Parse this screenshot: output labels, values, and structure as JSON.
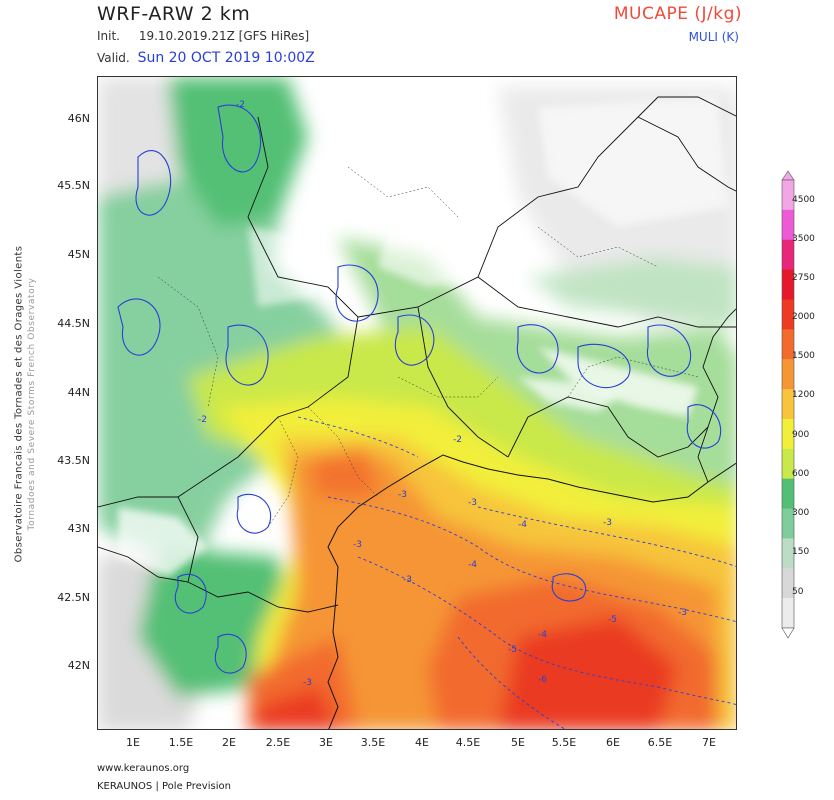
{
  "header": {
    "title": "WRF-ARW 2 km",
    "init_label": "Init.",
    "init_value": "19.10.2019.21Z [GFS HiRes]",
    "valid_label": "Valid.",
    "valid_value": "Sun 20 OCT 2019 10:00Z",
    "parameter_main": "MUCAPE (J/kg)",
    "parameter_sub": "MULI (K)"
  },
  "side_label": {
    "line1": "Observatoire Francais des Tornades et des Orages Violents",
    "line2": "Tornadoes and Severe Storms French Observatory"
  },
  "map": {
    "lat_labels": [
      "46N",
      "45.5N",
      "45N",
      "44.5N",
      "44N",
      "43.5N",
      "43N",
      "42.5N",
      "42N"
    ],
    "lon_labels": [
      "1E",
      "1.5E",
      "2E",
      "2.5E",
      "3E",
      "3.5E",
      "4E",
      "4.5E",
      "5E",
      "5.5E",
      "6E",
      "6.5E",
      "7E"
    ],
    "contour_labels": [
      "-2",
      "-2",
      "-2",
      "-3",
      "-3",
      "-3",
      "-3",
      "-4",
      "-4",
      "-4",
      "-5",
      "-5",
      "-6",
      "-3",
      "-3",
      "-3"
    ],
    "colors": {
      "land_white": "#ffffff",
      "green_light": "#9bd98f",
      "green": "#52c074",
      "yellow_green": "#c9e84a",
      "yellow": "#f2ef3a",
      "orange_light": "#f7c43b",
      "orange": "#f59534",
      "red_orange": "#f26a2d",
      "red": "#ea3a22",
      "muli_contour": "#2a3fd8"
    }
  },
  "colorbar": {
    "labels": [
      "4500",
      "3500",
      "2750",
      "2000",
      "1500",
      "1200",
      "900",
      "600",
      "300",
      "150",
      "50"
    ],
    "colors": [
      "#f2a6e6",
      "#ee5ad6",
      "#e8277a",
      "#e6182c",
      "#ee3a22",
      "#f36a2d",
      "#f59534",
      "#f7c43b",
      "#f2ef3a",
      "#c9e84a",
      "#52c074",
      "#7fcd9a",
      "#bcdcc6",
      "#d8d8d8",
      "#ececec"
    ]
  },
  "footer": {
    "url": "www.keraunos.org",
    "brand": "KERAUNOS | Pole Prevision"
  }
}
